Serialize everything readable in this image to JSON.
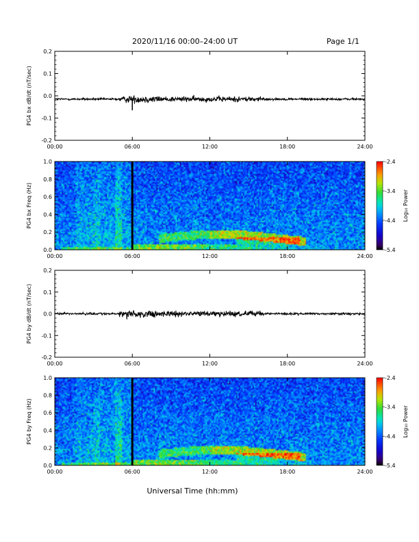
{
  "header": {
    "title": "2020/11/16  00:00–24:00 UT",
    "page": "Page 1/1"
  },
  "xlabel": "Universal Time (hh:mm)",
  "colorbar": {
    "label": "Log₁₀ Power",
    "ticks": [
      "-2.4",
      "-3.4",
      "-4.4",
      "-5.4"
    ]
  },
  "chart_data": [
    {
      "type": "line",
      "ylabel": "PG4 bx dB/dt (nT/sec)",
      "x_ticks": [
        "00:00",
        "06:00",
        "12:00",
        "18:00",
        "24:00"
      ],
      "y_ticks": [
        "0.2",
        "0.1",
        "0.0",
        "-0.1",
        "-0.2"
      ],
      "xlim": [
        0,
        24
      ],
      "ylim": [
        -0.2,
        0.2
      ],
      "baseline": -0.015,
      "spike": {
        "x": 6.0,
        "y": -0.065
      },
      "series": [
        {
          "values": [
            {
              "x": 0.0,
              "y": -0.016
            },
            {
              "x": 2.0,
              "y": -0.014
            },
            {
              "x": 4.0,
              "y": -0.017
            },
            {
              "x": 6.0,
              "y": -0.065
            },
            {
              "x": 8.0,
              "y": -0.02
            },
            {
              "x": 10.0,
              "y": -0.012
            },
            {
              "x": 12.0,
              "y": -0.018
            },
            {
              "x": 14.0,
              "y": -0.01
            },
            {
              "x": 16.0,
              "y": -0.016
            },
            {
              "x": 18.0,
              "y": -0.015
            },
            {
              "x": 20.0,
              "y": -0.015
            },
            {
              "x": 24.0,
              "y": -0.015
            }
          ]
        }
      ]
    },
    {
      "type": "heatmap",
      "ylabel": "PG4 bx Freq (Hz)",
      "x_ticks": [
        "00:00",
        "06:00",
        "12:00",
        "18:00",
        "24:00"
      ],
      "y_ticks": [
        "1.0",
        "0.8",
        "0.6",
        "0.4",
        "0.2",
        "0.0"
      ],
      "xlim": [
        0,
        24
      ],
      "ylim": [
        0,
        1
      ],
      "zlim": [
        -5.4,
        -2.4
      ],
      "vertical_line_x": 6.0
    },
    {
      "type": "line",
      "ylabel": "PG4 by dB/dt (nT/sec)",
      "x_ticks": [
        "00:00",
        "06:00",
        "12:00",
        "18:00",
        "24:00"
      ],
      "y_ticks": [
        "0.2",
        "0.1",
        "0.0",
        "-0.1",
        "-0.2"
      ],
      "xlim": [
        0,
        24
      ],
      "ylim": [
        -0.2,
        0.2
      ],
      "baseline": 0.0,
      "series": [
        {
          "values": [
            {
              "x": 0.0,
              "y": 0.0
            },
            {
              "x": 4.0,
              "y": 0.0
            },
            {
              "x": 6.0,
              "y": 0.004
            },
            {
              "x": 7.0,
              "y": -0.006
            },
            {
              "x": 12.0,
              "y": 0.0
            },
            {
              "x": 14.0,
              "y": -0.004
            },
            {
              "x": 18.0,
              "y": 0.0
            },
            {
              "x": 24.0,
              "y": 0.0
            }
          ]
        }
      ]
    },
    {
      "type": "heatmap",
      "ylabel": "PG4 by Freq (Hz)",
      "x_ticks": [
        "00:00",
        "06:00",
        "12:00",
        "18:00",
        "24:00"
      ],
      "y_ticks": [
        "1.0",
        "0.8",
        "0.6",
        "0.4",
        "0.2",
        "0.0"
      ],
      "xlim": [
        0,
        24
      ],
      "ylim": [
        0,
        1
      ],
      "zlim": [
        -5.4,
        -2.4
      ],
      "vertical_line_x": 6.0
    }
  ]
}
